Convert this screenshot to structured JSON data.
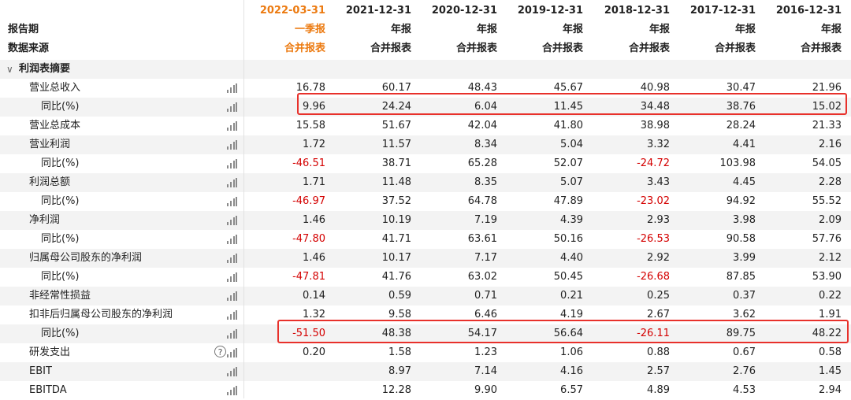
{
  "columns": [
    {
      "date": "2022-03-31",
      "report": "一季报",
      "source": "合并报表"
    },
    {
      "date": "2021-12-31",
      "report": "年报",
      "source": "合并报表"
    },
    {
      "date": "2020-12-31",
      "report": "年报",
      "source": "合并报表"
    },
    {
      "date": "2019-12-31",
      "report": "年报",
      "source": "合并报表"
    },
    {
      "date": "2018-12-31",
      "report": "年报",
      "source": "合并报表"
    },
    {
      "date": "2017-12-31",
      "report": "年报",
      "source": "合并报表"
    },
    {
      "date": "2016-12-31",
      "report": "年报",
      "source": "合并报表"
    }
  ],
  "header": {
    "period_label": "报告期",
    "source_label": "数据来源"
  },
  "section": {
    "title": "利润表摘要"
  },
  "rows": [
    {
      "label": "营业总收入",
      "values": [
        "16.78",
        "60.17",
        "48.43",
        "45.67",
        "40.98",
        "30.47",
        "21.96"
      ]
    },
    {
      "label": "同比(%)",
      "values": [
        "9.96",
        "24.24",
        "6.04",
        "11.45",
        "34.48",
        "38.76",
        "15.02"
      ]
    },
    {
      "label": "营业总成本",
      "values": [
        "15.58",
        "51.67",
        "42.04",
        "41.80",
        "38.98",
        "28.24",
        "21.33"
      ]
    },
    {
      "label": "营业利润",
      "values": [
        "1.72",
        "11.57",
        "8.34",
        "5.04",
        "3.32",
        "4.41",
        "2.16"
      ]
    },
    {
      "label": "同比(%)",
      "values": [
        "-46.51",
        "38.71",
        "65.28",
        "52.07",
        "-24.72",
        "103.98",
        "54.05"
      ]
    },
    {
      "label": "利润总额",
      "values": [
        "1.71",
        "11.48",
        "8.35",
        "5.07",
        "3.43",
        "4.45",
        "2.28"
      ]
    },
    {
      "label": "同比(%)",
      "values": [
        "-46.97",
        "37.52",
        "64.78",
        "47.89",
        "-23.02",
        "94.92",
        "55.52"
      ]
    },
    {
      "label": "净利润",
      "values": [
        "1.46",
        "10.19",
        "7.19",
        "4.39",
        "2.93",
        "3.98",
        "2.09"
      ]
    },
    {
      "label": "同比(%)",
      "values": [
        "-47.80",
        "41.71",
        "63.61",
        "50.16",
        "-26.53",
        "90.58",
        "57.76"
      ]
    },
    {
      "label": "归属母公司股东的净利润",
      "values": [
        "1.46",
        "10.17",
        "7.17",
        "4.40",
        "2.92",
        "3.99",
        "2.12"
      ]
    },
    {
      "label": "同比(%)",
      "values": [
        "-47.81",
        "41.76",
        "63.02",
        "50.45",
        "-26.68",
        "87.85",
        "53.90"
      ]
    },
    {
      "label": "非经常性损益",
      "values": [
        "0.14",
        "0.59",
        "0.71",
        "0.21",
        "0.25",
        "0.37",
        "0.22"
      ]
    },
    {
      "label": "扣非后归属母公司股东的净利润",
      "values": [
        "1.32",
        "9.58",
        "6.46",
        "4.19",
        "2.67",
        "3.62",
        "1.91"
      ]
    },
    {
      "label": "同比(%)",
      "values": [
        "-51.50",
        "48.38",
        "54.17",
        "56.64",
        "-26.11",
        "89.75",
        "48.22"
      ]
    },
    {
      "label": "研发支出",
      "values": [
        "0.20",
        "1.58",
        "1.23",
        "1.06",
        "0.88",
        "0.67",
        "0.58"
      ]
    },
    {
      "label": "EBIT",
      "values": [
        "",
        "8.97",
        "7.14",
        "4.16",
        "2.57",
        "2.76",
        "1.45"
      ]
    },
    {
      "label": "EBITDA",
      "values": [
        "",
        "12.28",
        "9.90",
        "6.57",
        "4.89",
        "4.53",
        "2.94"
      ]
    }
  ],
  "colors": {
    "negative": "#d40000",
    "highlight": "#e8312b",
    "current_period": "#ec7a10"
  },
  "icons": {
    "row_chart": "bar-chart-icon",
    "help": "question-circle-icon",
    "collapse": "chevron-down-icon"
  }
}
